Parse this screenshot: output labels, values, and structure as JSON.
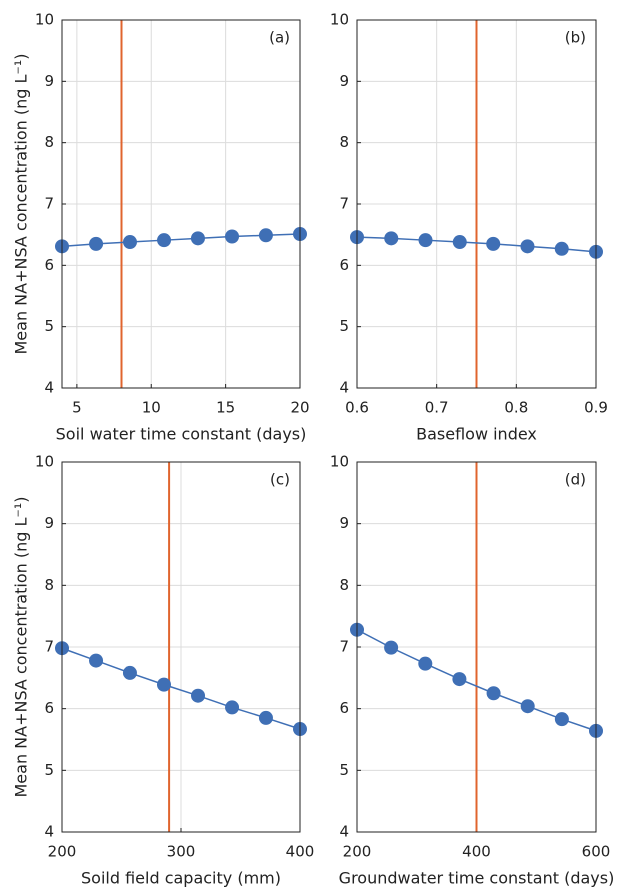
{
  "chart_data": [
    {
      "type": "line",
      "label": "(a)",
      "xlabel": "Soil water time constant (days)",
      "ylabel": "Mean NA+NSA concentration (ng L⁻¹)",
      "x": [
        4,
        6.29,
        8.57,
        10.86,
        13.14,
        15.43,
        17.71,
        20
      ],
      "values": [
        6.31,
        6.35,
        6.38,
        6.41,
        6.44,
        6.47,
        6.49,
        6.51
      ],
      "color": "#3f6fb5",
      "vline": 8,
      "vline_color": "#e0642e",
      "xlim": [
        4,
        20
      ],
      "xticks": [
        5,
        10,
        15,
        20
      ],
      "ylim": [
        4,
        10
      ],
      "yticks": [
        4,
        5,
        6,
        7,
        8,
        9,
        10
      ],
      "grid": true
    },
    {
      "type": "line",
      "label": "(b)",
      "xlabel": "Baseflow index",
      "x": [
        0.6,
        0.643,
        0.686,
        0.729,
        0.771,
        0.814,
        0.857,
        0.9
      ],
      "values": [
        6.46,
        6.44,
        6.41,
        6.38,
        6.35,
        6.31,
        6.27,
        6.22
      ],
      "color": "#3f6fb5",
      "vline": 0.75,
      "vline_color": "#e0642e",
      "xlim": [
        0.6,
        0.9
      ],
      "xticks": [
        0.6,
        0.7,
        0.8,
        0.9
      ],
      "ylim": [
        4,
        10
      ],
      "yticks": [
        4,
        5,
        6,
        7,
        8,
        9,
        10
      ],
      "grid": true
    },
    {
      "type": "line",
      "label": "(c)",
      "xlabel": "Soild field capacity (mm)",
      "ylabel": "Mean NA+NSA concentration (ng L⁻¹)",
      "x": [
        200,
        228.6,
        257.1,
        285.7,
        314.3,
        342.9,
        371.4,
        400
      ],
      "values": [
        6.98,
        6.78,
        6.58,
        6.39,
        6.21,
        6.02,
        5.85,
        5.67
      ],
      "color": "#3f6fb5",
      "vline": 290,
      "vline_color": "#e0642e",
      "xlim": [
        200,
        400
      ],
      "xticks": [
        200,
        300,
        400
      ],
      "ylim": [
        4,
        10
      ],
      "yticks": [
        4,
        5,
        6,
        7,
        8,
        9,
        10
      ],
      "grid": true
    },
    {
      "type": "line",
      "label": "(d)",
      "xlabel": "Groundwater time constant (days)",
      "x": [
        200,
        257.1,
        314.3,
        371.4,
        428.6,
        485.7,
        542.9,
        600
      ],
      "values": [
        7.28,
        6.99,
        6.73,
        6.48,
        6.25,
        6.04,
        5.83,
        5.64
      ],
      "color": "#3f6fb5",
      "vline": 400,
      "vline_color": "#e0642e",
      "xlim": [
        200,
        600
      ],
      "xticks": [
        200,
        400,
        600
      ],
      "ylim": [
        4,
        10
      ],
      "yticks": [
        4,
        5,
        6,
        7,
        8,
        9,
        10
      ],
      "grid": true
    }
  ]
}
